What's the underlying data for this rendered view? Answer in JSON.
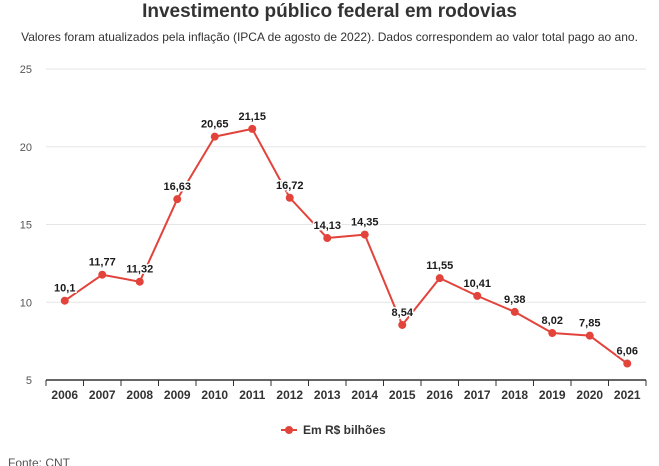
{
  "chart_data": {
    "type": "line",
    "title": "Investimento público federal em rodovias",
    "subtitle": "Valores foram atualizados pela inflação (IPCA de agosto de 2022). Dados correspondem ao valor total pago ao ano.",
    "categories": [
      "2006",
      "2007",
      "2008",
      "2009",
      "2010",
      "2011",
      "2012",
      "2013",
      "2014",
      "2015",
      "2016",
      "2017",
      "2018",
      "2019",
      "2020",
      "2021"
    ],
    "series": [
      {
        "name": "Em R$ bilhões",
        "values": [
          10.1,
          11.77,
          11.32,
          16.63,
          20.65,
          21.15,
          16.72,
          14.13,
          14.35,
          8.54,
          11.55,
          10.41,
          9.38,
          8.02,
          7.85,
          6.06
        ],
        "labels": [
          "10,1",
          "11,77",
          "11,32",
          "16,63",
          "20,65",
          "21,15",
          "16,72",
          "14,13",
          "14,35",
          "8,54",
          "11,55",
          "10,41",
          "9,38",
          "8,02",
          "7,85",
          "6,06"
        ],
        "color": "#e2433b"
      }
    ],
    "yticks": [
      "5",
      "10",
      "15",
      "20",
      "25"
    ],
    "ylim": [
      5,
      25
    ],
    "grid": true,
    "legend": "bottom-center",
    "source": "Fonte: CNT"
  },
  "colors": {
    "line": "#e2433b",
    "grid": "#e6e6e6",
    "axis": "#333333",
    "text": "#333333"
  }
}
